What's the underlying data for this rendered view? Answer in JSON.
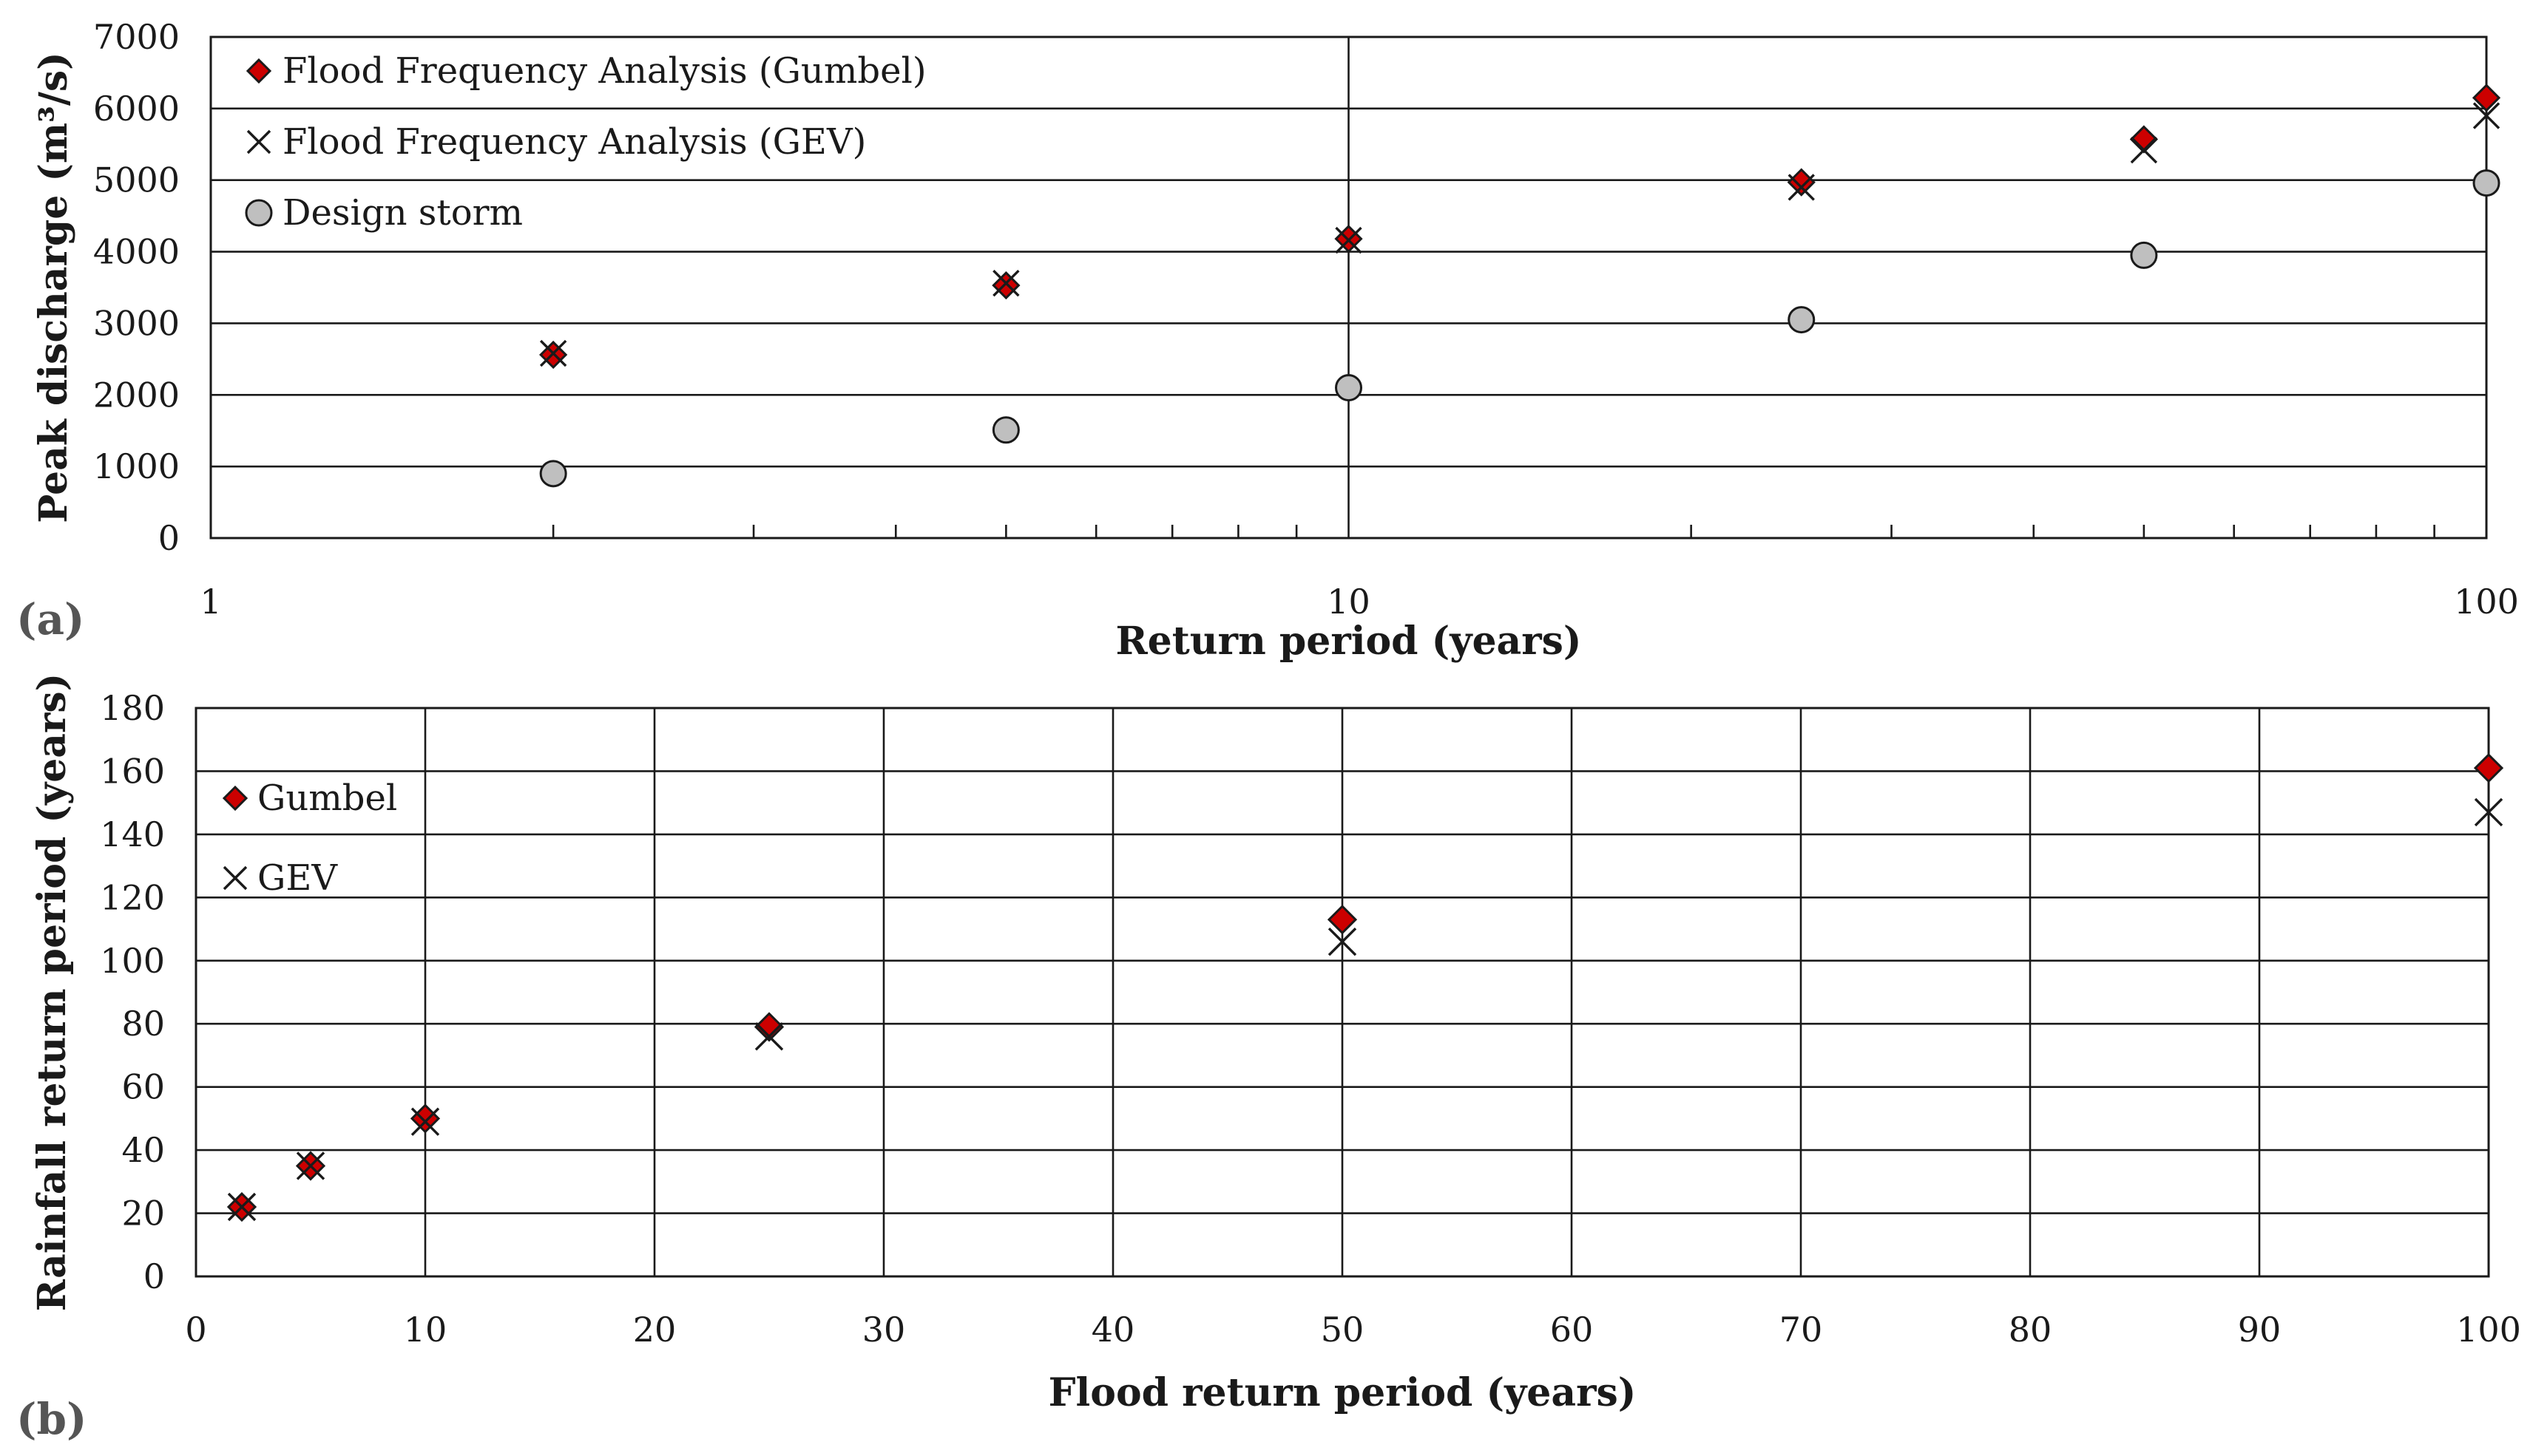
{
  "colors": {
    "gumbel_marker": "#cc0000",
    "design_storm_marker": "#bfbfbf",
    "marker_stroke": "#1a1a1a",
    "panel_label": "#555555"
  },
  "chart_data": [
    {
      "panel_label": "(a)",
      "type": "scatter",
      "xlabel": "Return period (years)",
      "ylabel": "Peak discharge (m³/s)",
      "xscale": "log",
      "xlim": [
        1,
        100
      ],
      "ylim": [
        0,
        7000
      ],
      "xticks": [
        "1",
        "10",
        "100"
      ],
      "yticks": [
        "0",
        "1000",
        "2000",
        "3000",
        "4000",
        "5000",
        "6000",
        "7000"
      ],
      "grid": true,
      "legend_position": "top-left",
      "series": [
        {
          "name": "Flood Frequency Analysis (Gumbel)",
          "marker": "diamond",
          "x": [
            2,
            5,
            10,
            25,
            50,
            100
          ],
          "y": [
            2560,
            3530,
            4180,
            4970,
            5570,
            6150
          ]
        },
        {
          "name": "Flood Frequency Analysis (GEV)",
          "marker": "x",
          "x": [
            2,
            5,
            10,
            25,
            50,
            100
          ],
          "y": [
            2580,
            3560,
            4160,
            4900,
            5420,
            5900
          ]
        },
        {
          "name": "Design storm",
          "marker": "circle",
          "x": [
            2,
            5,
            10,
            25,
            50,
            100
          ],
          "y": [
            900,
            1510,
            2100,
            3050,
            3950,
            4960
          ]
        }
      ]
    },
    {
      "panel_label": "(b)",
      "type": "scatter",
      "xlabel": "Flood return period (years)",
      "ylabel": "Rainfall return period (years)",
      "xscale": "linear",
      "xlim": [
        0,
        100
      ],
      "ylim": [
        0,
        180
      ],
      "xticks": [
        "0",
        "10",
        "20",
        "30",
        "40",
        "50",
        "60",
        "70",
        "80",
        "90",
        "100"
      ],
      "yticks": [
        "0",
        "20",
        "40",
        "60",
        "80",
        "100",
        "120",
        "140",
        "160",
        "180"
      ],
      "grid": true,
      "legend_position": "top-left",
      "series": [
        {
          "name": "Gumbel",
          "marker": "diamond",
          "x": [
            2,
            5,
            10,
            25,
            50,
            100
          ],
          "y": [
            22,
            35,
            50,
            79,
            113,
            161
          ]
        },
        {
          "name": "GEV",
          "marker": "x",
          "x": [
            2,
            5,
            10,
            25,
            50,
            100
          ],
          "y": [
            22,
            35,
            49,
            76,
            106,
            147
          ]
        }
      ]
    }
  ]
}
